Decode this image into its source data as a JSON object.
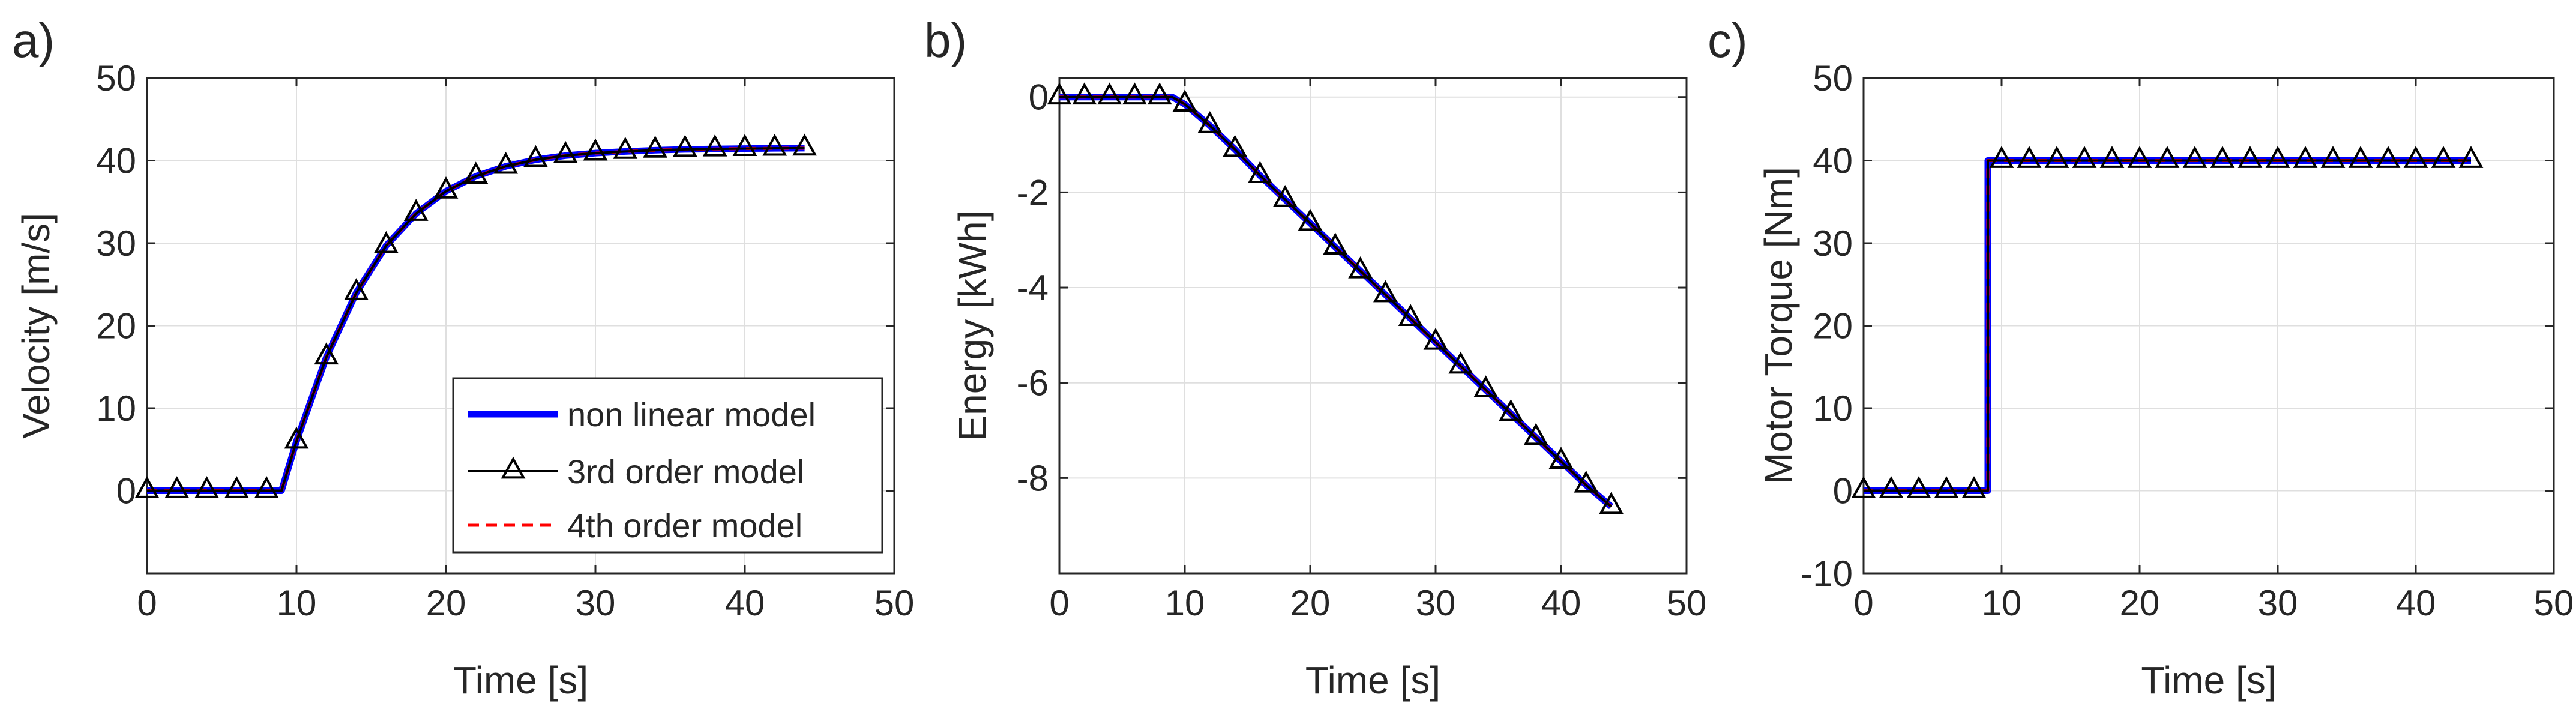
{
  "colors": {
    "nonlinear": "#0000ff",
    "third_order": "#000000",
    "fourth_order": "#ff0000",
    "grid": "#dfdfdf",
    "axes": "#262626"
  },
  "legend": {
    "nonlinear": "non linear model",
    "third": "3rd order model",
    "fourth": "4th order model"
  },
  "chart_data": [
    {
      "type": "line",
      "panel": "a)",
      "title": "",
      "xlabel": "Time [s]",
      "ylabel": "Velocity [m/s]",
      "xlim": [
        0,
        50
      ],
      "ylim": [
        -10,
        50
      ],
      "xticks": [
        0,
        10,
        20,
        30,
        40,
        50
      ],
      "yticks": [
        0,
        10,
        20,
        30,
        40,
        50
      ],
      "grid": true,
      "legend_position": "bottom-right",
      "x": [
        0,
        2,
        4,
        6,
        8,
        9,
        10,
        12,
        14,
        16,
        18,
        20,
        22,
        24,
        26,
        28,
        30,
        32,
        34,
        36,
        38,
        40,
        42,
        44
      ],
      "series": [
        {
          "name": "non linear model",
          "values": [
            0,
            0,
            0,
            0,
            0,
            0,
            6,
            16.2,
            24,
            29.7,
            33.6,
            36.3,
            38.1,
            39.3,
            40.1,
            40.6,
            40.9,
            41.1,
            41.25,
            41.35,
            41.4,
            41.45,
            41.48,
            41.5
          ]
        },
        {
          "name": "4th order model",
          "values": [
            0,
            0,
            0,
            0,
            0,
            0,
            6,
            16.2,
            24,
            29.7,
            33.6,
            36.3,
            38.1,
            39.3,
            40.1,
            40.6,
            40.9,
            41.1,
            41.25,
            41.35,
            41.4,
            41.45,
            41.48,
            41.5
          ]
        },
        {
          "name": "3rd order model",
          "values": [
            0,
            0,
            0,
            0,
            0,
            0,
            6,
            16.2,
            24,
            29.7,
            33.6,
            36.3,
            38.1,
            39.3,
            40.1,
            40.6,
            40.9,
            41.1,
            41.25,
            41.35,
            41.4,
            41.45,
            41.48,
            41.5
          ]
        }
      ],
      "markers_x": [
        0,
        2,
        4,
        6,
        8,
        10,
        12,
        14,
        16,
        18,
        20,
        22,
        24,
        26,
        28,
        30,
        32,
        34,
        36,
        38,
        40,
        42,
        44
      ]
    },
    {
      "type": "line",
      "panel": "b)",
      "title": "",
      "xlabel": "Time [s]",
      "ylabel": "Energy [kWh]",
      "xlim": [
        0,
        50
      ],
      "ylim": [
        -10,
        0.4
      ],
      "xticks": [
        0,
        10,
        20,
        30,
        40,
        50
      ],
      "yticks": [
        0,
        -2,
        -4,
        -6,
        -8
      ],
      "ytick_labels": [
        "0",
        "-2",
        "-4",
        "-6",
        "-8"
      ],
      "grid": true,
      "x": [
        0,
        2,
        4,
        6,
        8,
        9,
        10,
        12,
        14,
        16,
        18,
        20,
        22,
        24,
        26,
        28,
        30,
        32,
        34,
        36,
        38,
        40,
        42,
        44
      ],
      "series": [
        {
          "name": "non linear model",
          "values": [
            0,
            0,
            0,
            0,
            0,
            0,
            -0.15,
            -0.6,
            -1.1,
            -1.65,
            -2.15,
            -2.65,
            -3.15,
            -3.65,
            -4.15,
            -4.65,
            -5.15,
            -5.65,
            -6.15,
            -6.65,
            -7.15,
            -7.65,
            -8.15,
            -8.6
          ]
        },
        {
          "name": "4th order model",
          "values": [
            0,
            0,
            0,
            0,
            0,
            0,
            -0.15,
            -0.6,
            -1.1,
            -1.65,
            -2.15,
            -2.65,
            -3.15,
            -3.65,
            -4.15,
            -4.65,
            -5.15,
            -5.65,
            -6.15,
            -6.65,
            -7.15,
            -7.65,
            -8.15,
            -8.6
          ]
        },
        {
          "name": "3rd order model",
          "values": [
            0,
            0,
            0,
            0,
            0,
            0,
            -0.15,
            -0.6,
            -1.1,
            -1.65,
            -2.15,
            -2.65,
            -3.15,
            -3.65,
            -4.15,
            -4.65,
            -5.15,
            -5.65,
            -6.15,
            -6.65,
            -7.15,
            -7.65,
            -8.15,
            -8.6
          ]
        }
      ],
      "markers_x": [
        0,
        2,
        4,
        6,
        8,
        10,
        12,
        14,
        16,
        18,
        20,
        22,
        24,
        26,
        28,
        30,
        32,
        34,
        36,
        38,
        40,
        42,
        44
      ]
    },
    {
      "type": "line",
      "panel": "c)",
      "title": "",
      "xlabel": "Time [s]",
      "ylabel": "Motor Torque [Nm]",
      "xlim": [
        0,
        50
      ],
      "ylim": [
        -10,
        50
      ],
      "xticks": [
        0,
        10,
        20,
        30,
        40,
        50
      ],
      "yticks": [
        -10,
        0,
        10,
        20,
        30,
        40,
        50
      ],
      "grid": true,
      "x": [
        0,
        2,
        4,
        6,
        8,
        9,
        9,
        10,
        12,
        14,
        16,
        18,
        20,
        22,
        24,
        26,
        28,
        30,
        32,
        34,
        36,
        38,
        40,
        42,
        44
      ],
      "series": [
        {
          "name": "non linear model",
          "values": [
            0,
            0,
            0,
            0,
            0,
            0,
            40,
            40,
            40,
            40,
            40,
            40,
            40,
            40,
            40,
            40,
            40,
            40,
            40,
            40,
            40,
            40,
            40,
            40,
            40
          ]
        },
        {
          "name": "4th order model",
          "values": [
            0,
            0,
            0,
            0,
            0,
            0,
            40,
            40,
            40,
            40,
            40,
            40,
            40,
            40,
            40,
            40,
            40,
            40,
            40,
            40,
            40,
            40,
            40,
            40,
            40
          ]
        },
        {
          "name": "3rd order model",
          "values": [
            0,
            0,
            0,
            0,
            0,
            0,
            40,
            40,
            40,
            40,
            40,
            40,
            40,
            40,
            40,
            40,
            40,
            40,
            40,
            40,
            40,
            40,
            40,
            40,
            40
          ]
        }
      ],
      "markers_x": [
        0,
        2,
        4,
        6,
        8,
        10,
        12,
        14,
        16,
        18,
        20,
        22,
        24,
        26,
        28,
        30,
        32,
        34,
        36,
        38,
        40,
        42,
        44
      ]
    }
  ]
}
